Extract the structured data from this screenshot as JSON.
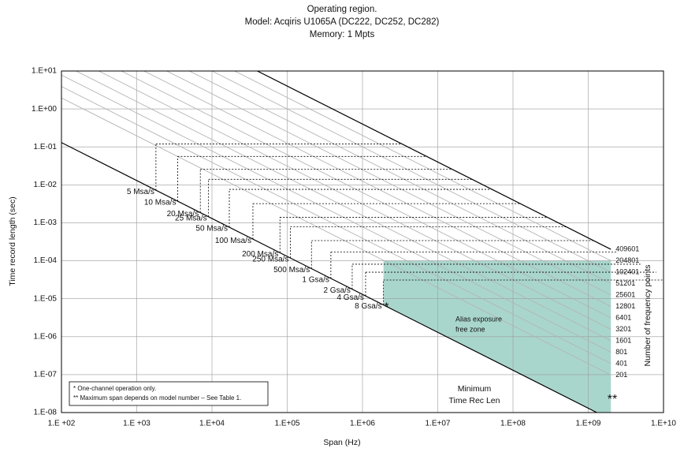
{
  "chart_data": {
    "type": "line",
    "title": [
      "Operating region.",
      "Model: Acqiris U1065A (DC222, DC252, DC282)",
      "Memory: 1 Mpts"
    ],
    "xlabel": "Span (Hz)",
    "ylabel": "Time record length (sec)",
    "y2label": "Number of frequency points",
    "log_x": true,
    "log_y": true,
    "grid": true,
    "xlim": [
      100,
      10000000000
    ],
    "ylim": [
      1e-08,
      10
    ],
    "xticks": [
      {
        "value": 100,
        "label": "1.E +02"
      },
      {
        "value": 1000,
        "label": "1.E +03"
      },
      {
        "value": 10000,
        "label": "1.E+04"
      },
      {
        "value": 100000,
        "label": "1.E+05"
      },
      {
        "value": 1000000,
        "label": "1.E+06"
      },
      {
        "value": 10000000,
        "label": "1.E+07"
      },
      {
        "value": 100000000,
        "label": "1.E+08"
      },
      {
        "value": 1000000000,
        "label": "1.E+09"
      },
      {
        "value": 10000000000,
        "label": "1.E+10"
      }
    ],
    "yticks": [
      {
        "value": 10,
        "label": "1.E+01"
      },
      {
        "value": 1,
        "label": "1.E+00"
      },
      {
        "value": 0.1,
        "label": "1.E-01"
      },
      {
        "value": 0.01,
        "label": "1.E-02"
      },
      {
        "value": 0.001,
        "label": "1.E-03"
      },
      {
        "value": 0.0001,
        "label": "1.E-04"
      },
      {
        "value": 1e-05,
        "label": "1.E-05"
      },
      {
        "value": 1e-06,
        "label": "1.E-06"
      },
      {
        "value": 1e-07,
        "label": "1.E-07"
      },
      {
        "value": 1e-08,
        "label": "1.E-08"
      }
    ],
    "alias_free_zone": {
      "color": "#a9d6cc",
      "x": [
        1900000,
        1900000,
        2000000000,
        2000000000,
        1300000000
      ],
      "y": [
        6.8e-06,
        0.0001,
        0.0001,
        1e-08,
        1e-08
      ],
      "label": [
        "Alias exposure",
        "free zone"
      ]
    },
    "minimum_line": {
      "color": "#000000",
      "x": [
        100,
        1300000000
      ],
      "y": [
        0.13,
        1e-08
      ],
      "label": [
        "Minimum",
        "Time Rec Len"
      ]
    },
    "frequency_lines": [
      {
        "points": 409601,
        "color": "#000000",
        "x": [
          40000,
          2000000000
        ],
        "y": [
          10,
          0.0002
        ]
      },
      {
        "points": 204801,
        "color": "#b4b4b4",
        "x": [
          20000,
          2000000000
        ],
        "y": [
          10,
          0.0001
        ]
      },
      {
        "points": 102401,
        "color": "#b4b4b4",
        "x": [
          10000,
          2000000000
        ],
        "y": [
          10,
          5e-05
        ]
      },
      {
        "points": 51201,
        "color": "#b4b4b4",
        "x": [
          5000,
          2000000000
        ],
        "y": [
          10,
          2.5e-05
        ]
      },
      {
        "points": 25601,
        "color": "#b4b4b4",
        "x": [
          2500,
          2000000000
        ],
        "y": [
          10,
          1.25e-05
        ]
      },
      {
        "points": 12801,
        "color": "#b4b4b4",
        "x": [
          1250,
          2000000000
        ],
        "y": [
          10,
          6.25e-06
        ]
      },
      {
        "points": 6401,
        "color": "#b4b4b4",
        "x": [
          625,
          2000000000
        ],
        "y": [
          10,
          3.125e-06
        ]
      },
      {
        "points": 3201,
        "color": "#b4b4b4",
        "x": [
          312.5,
          2000000000
        ],
        "y": [
          10,
          1.5625e-06
        ]
      },
      {
        "points": 1601,
        "color": "#b4b4b4",
        "x": [
          156.25,
          2000000000
        ],
        "y": [
          10,
          7.8125e-07
        ]
      },
      {
        "points": 801,
        "color": "#b4b4b4",
        "x": [
          100,
          2000000000
        ],
        "y": [
          7.8125,
          3.90625e-07
        ]
      },
      {
        "points": 401,
        "color": "#b4b4b4",
        "x": [
          100,
          2000000000
        ],
        "y": [
          3.906,
          1.953e-07
        ]
      },
      {
        "points": 201,
        "color": "#b4b4b4",
        "x": [
          100,
          2000000000
        ],
        "y": [
          1.953,
          9.77e-08
        ]
      }
    ],
    "sample_rates": [
      {
        "label": "5 Msa/s",
        "span": 1800,
        "t": 0.12
      },
      {
        "label": "10 Msa/s",
        "span": 3500,
        "t": 0.056
      },
      {
        "label": "20 Msa/s",
        "span": 7000,
        "t": 0.026
      },
      {
        "label": "25 Msa/s",
        "span": 9000,
        "t": 0.014
      },
      {
        "label": "50 Msa/s",
        "span": 17000,
        "t": 0.0076
      },
      {
        "label": "100 Msa/s",
        "span": 35000,
        "t": 0.0032
      },
      {
        "label": "200 Msa/s",
        "span": 80000,
        "t": 0.0014
      },
      {
        "label": "250 Msa/s",
        "span": 110000,
        "t": 0.00078
      },
      {
        "label": "500 Msa/s",
        "span": 210000,
        "t": 0.00034
      },
      {
        "label": "1 Gsa/s",
        "span": 380000,
        "t": 0.00017
      },
      {
        "label": "2 Gsa/s",
        "span": 730000,
        "t": 8.1e-05
      },
      {
        "label": "4 Gsa/s",
        "span": 1100000,
        "t": 5e-05
      },
      {
        "label": "8 Gsa/s",
        "span": 1900000,
        "t": 3.1e-05,
        "marker": "*"
      }
    ],
    "max_span_marker": "**",
    "notes": [
      "*   One-channel operation only.",
      "**  Maximum span depends on model number – See Table 1."
    ]
  }
}
